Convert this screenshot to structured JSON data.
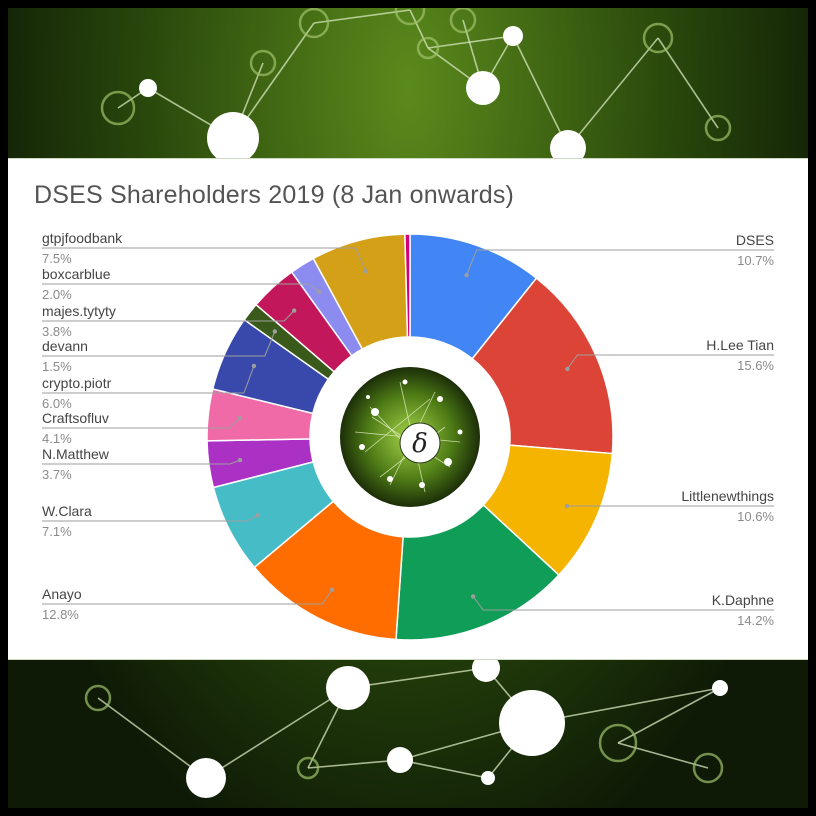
{
  "chart_data": {
    "type": "pie",
    "title": "DSES Shareholders 2019 (8 Jan onwards)",
    "donut": true,
    "center_symbol": "δ",
    "slices": [
      {
        "label": "DSES",
        "value": 10.7,
        "pct": "10.7%",
        "color": "#4285f4",
        "side": "right"
      },
      {
        "label": "H.Lee Tian",
        "value": 15.6,
        "pct": "15.6%",
        "color": "#db4437",
        "side": "right"
      },
      {
        "label": "Littlenewthings",
        "value": 10.6,
        "pct": "10.6%",
        "color": "#f4b400",
        "side": "right"
      },
      {
        "label": "K.Daphne",
        "value": 14.2,
        "pct": "14.2%",
        "color": "#0f9d58",
        "side": "right"
      },
      {
        "label": "Anayo",
        "value": 12.8,
        "pct": "12.8%",
        "color": "#ff6d00",
        "side": "left"
      },
      {
        "label": "W.Clara",
        "value": 7.1,
        "pct": "7.1%",
        "color": "#46bdc6",
        "side": "left"
      },
      {
        "label": "N.Matthew",
        "value": 3.7,
        "pct": "3.7%",
        "color": "#ab30c4",
        "side": "left"
      },
      {
        "label": "Craftsofluv",
        "value": 4.1,
        "pct": "4.1%",
        "color": "#f06aa8",
        "side": "left"
      },
      {
        "label": "crypto.piotr",
        "value": 6.0,
        "pct": "6.0%",
        "color": "#3949ab",
        "side": "left"
      },
      {
        "label": "devann",
        "value": 1.5,
        "pct": "1.5%",
        "color": "#3a5a1c",
        "side": "left"
      },
      {
        "label": "majes.tytyty",
        "value": 3.8,
        "pct": "3.8%",
        "color": "#c2185b",
        "side": "left"
      },
      {
        "label": "boxcarblue",
        "value": 2.0,
        "pct": "2.0%",
        "color": "#8c8cf0",
        "side": "left"
      },
      {
        "label": "gtpjfoodbank",
        "value": 7.5,
        "pct": "7.5%",
        "color": "#d4a017",
        "side": "left"
      },
      {
        "label": "",
        "value": 0,
        "pct": "",
        "color": "#d1007a",
        "side": "left"
      }
    ]
  }
}
